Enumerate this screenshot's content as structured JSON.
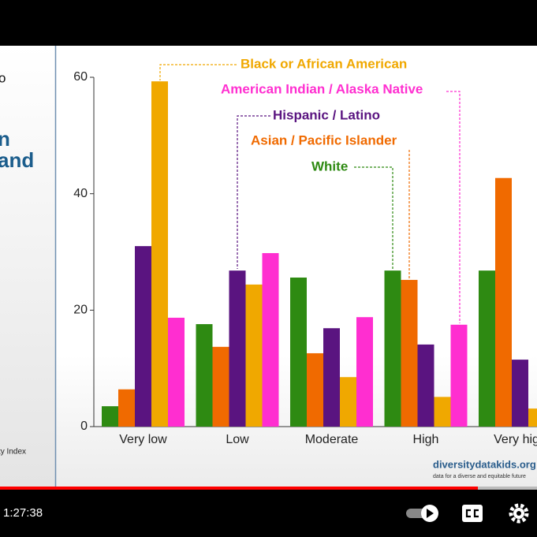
{
  "slide": {
    "left_panel": [
      "o",
      "n",
      "and",
      "ty Index"
    ],
    "logo": "diversitydatakids.org",
    "tagline": "data for a diverse and equitable future"
  },
  "player": {
    "time": "1:27:38"
  },
  "chart_data": {
    "type": "bar",
    "categories": [
      "Very low",
      "Low",
      "Moderate",
      "High",
      "Very high"
    ],
    "series": [
      {
        "name": "White",
        "color": "#2e8a12",
        "values": [
          3.5,
          17.6,
          25.6,
          26.8,
          26.8
        ]
      },
      {
        "name": "Asian / Pacific Islander",
        "color": "#f06a00",
        "values": [
          6.4,
          13.7,
          12.6,
          25.2,
          42.7
        ]
      },
      {
        "name": "Hispanic / Latino",
        "color": "#5a1480",
        "values": [
          31,
          26.8,
          16.9,
          14.1,
          11.5
        ]
      },
      {
        "name": "Black or African American",
        "color": "#f0a800",
        "values": [
          59.3,
          24.4,
          8.5,
          5.1,
          3.1
        ]
      },
      {
        "name": "American Indian / Alaska Native",
        "color": "#ff2ed0",
        "values": [
          18.7,
          29.8,
          18.8,
          17.5,
          null
        ]
      }
    ],
    "ylim": [
      0,
      60
    ],
    "yticks": [
      0,
      20,
      40,
      60
    ],
    "grid": false
  }
}
